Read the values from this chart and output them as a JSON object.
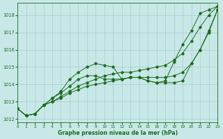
{
  "xlabel": "Graphe pression niveau de la mer (hPa)",
  "bg_color": "#c8e8e8",
  "grid_color": "#a8cccc",
  "line_color": "#1a6b1a",
  "xlim": [
    0,
    23
  ],
  "ylim": [
    1011.8,
    1018.7
  ],
  "yticks": [
    1012,
    1013,
    1014,
    1015,
    1016,
    1017,
    1018
  ],
  "xticks": [
    0,
    1,
    2,
    3,
    4,
    5,
    6,
    7,
    8,
    9,
    10,
    11,
    12,
    13,
    14,
    15,
    16,
    17,
    18,
    19,
    20,
    21,
    22,
    23
  ],
  "series": [
    {
      "x": [
        0,
        1,
        2,
        3,
        4,
        5,
        6,
        7,
        8,
        9,
        10,
        11,
        12,
        13,
        14,
        15,
        16,
        17,
        18,
        19,
        20,
        21,
        22,
        23
      ],
      "y": [
        1012.6,
        1012.2,
        1012.3,
        1012.8,
        1013.2,
        1013.6,
        1014.3,
        1014.7,
        1015.0,
        1015.2,
        1015.1,
        1015.0,
        1014.3,
        1014.4,
        1014.4,
        1014.2,
        1014.1,
        1014.2,
        1015.3,
        1016.3,
        1017.1,
        1018.1,
        1018.3,
        1018.5
      ]
    },
    {
      "x": [
        0,
        1,
        2,
        3,
        4,
        5,
        6,
        7,
        8,
        9,
        10,
        11,
        12,
        13,
        14,
        15,
        16,
        17,
        18,
        19,
        20,
        21,
        22,
        23
      ],
      "y": [
        1012.6,
        1012.2,
        1012.3,
        1012.8,
        1013.2,
        1013.5,
        1013.9,
        1014.3,
        1014.5,
        1014.5,
        1014.3,
        1014.3,
        1014.3,
        1014.4,
        1014.4,
        1014.2,
        1014.1,
        1014.1,
        1014.1,
        1014.2,
        1015.2,
        1016.0,
        1017.1,
        1018.3
      ]
    },
    {
      "x": [
        0,
        1,
        2,
        3,
        4,
        5,
        6,
        7,
        8,
        9,
        10,
        11,
        12,
        13,
        14,
        15,
        16,
        17,
        18,
        19,
        20,
        21,
        22,
        23
      ],
      "y": [
        1012.6,
        1012.2,
        1012.3,
        1012.8,
        1013.0,
        1013.3,
        1013.6,
        1013.9,
        1014.1,
        1014.3,
        1014.5,
        1014.6,
        1014.7,
        1014.7,
        1014.8,
        1014.9,
        1015.0,
        1015.1,
        1015.4,
        1015.8,
        1016.5,
        1017.3,
        1018.0,
        1018.5
      ]
    },
    {
      "x": [
        0,
        1,
        2,
        3,
        4,
        5,
        6,
        7,
        8,
        9,
        10,
        11,
        12,
        13,
        14,
        15,
        16,
        17,
        18,
        19,
        20,
        21,
        22,
        23
      ],
      "y": [
        1012.6,
        1012.2,
        1012.3,
        1012.8,
        1013.0,
        1013.2,
        1013.5,
        1013.7,
        1013.9,
        1014.0,
        1014.1,
        1014.2,
        1014.3,
        1014.4,
        1014.4,
        1014.4,
        1014.4,
        1014.4,
        1014.5,
        1014.7,
        1015.2,
        1016.0,
        1017.0,
        1018.3
      ]
    }
  ]
}
